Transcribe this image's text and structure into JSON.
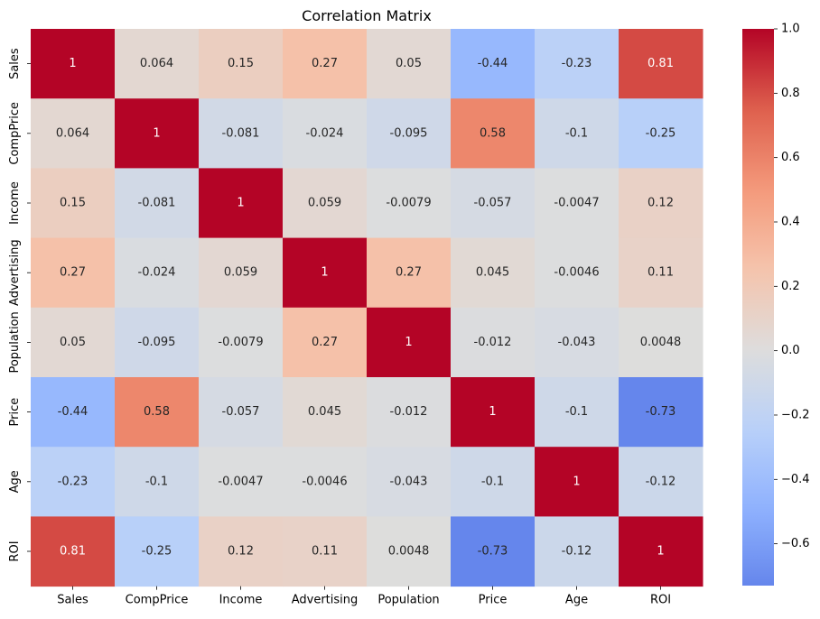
{
  "chart_data": {
    "type": "heatmap",
    "title": "Correlation Matrix",
    "xlabel": "",
    "ylabel": "",
    "labels": [
      "Sales",
      "CompPrice",
      "Income",
      "Advertising",
      "Population",
      "Price",
      "Age",
      "ROI"
    ],
    "matrix": [
      [
        1,
        0.064,
        0.15,
        0.27,
        0.05,
        -0.44,
        -0.23,
        0.81
      ],
      [
        0.064,
        1,
        -0.081,
        -0.024,
        -0.095,
        0.58,
        -0.1,
        -0.25
      ],
      [
        0.15,
        -0.081,
        1,
        0.059,
        -0.0079,
        -0.057,
        -0.0047,
        0.12
      ],
      [
        0.27,
        -0.024,
        0.059,
        1,
        0.27,
        0.045,
        -0.0046,
        0.11
      ],
      [
        0.05,
        -0.095,
        -0.0079,
        0.27,
        1,
        -0.012,
        -0.043,
        0.0048
      ],
      [
        -0.44,
        0.58,
        -0.057,
        0.045,
        -0.012,
        1,
        -0.1,
        -0.73
      ],
      [
        -0.23,
        -0.1,
        -0.0047,
        -0.0046,
        -0.043,
        -0.1,
        1,
        -0.12
      ],
      [
        0.81,
        -0.25,
        0.12,
        0.11,
        0.0048,
        -0.73,
        -0.12,
        1
      ]
    ],
    "annotations": [
      [
        "1",
        "0.064",
        "0.15",
        "0.27",
        "0.05",
        "-0.44",
        "-0.23",
        "0.81"
      ],
      [
        "0.064",
        "1",
        "-0.081",
        "-0.024",
        "-0.095",
        "0.58",
        "-0.1",
        "-0.25"
      ],
      [
        "0.15",
        "-0.081",
        "1",
        "0.059",
        "-0.0079",
        "-0.057",
        "-0.0047",
        "0.12"
      ],
      [
        "0.27",
        "-0.024",
        "0.059",
        "1",
        "0.27",
        "0.045",
        "-0.0046",
        "0.11"
      ],
      [
        "0.05",
        "-0.095",
        "-0.0079",
        "0.27",
        "1",
        "-0.012",
        "-0.043",
        "0.0048"
      ],
      [
        "-0.44",
        "0.58",
        "-0.057",
        "0.045",
        "-0.012",
        "1",
        "-0.1",
        "-0.73"
      ],
      [
        "-0.23",
        "-0.1",
        "-0.0047",
        "-0.0046",
        "-0.043",
        "-0.1",
        "1",
        "-0.12"
      ],
      [
        "0.81",
        "-0.25",
        "0.12",
        "0.11",
        "0.0048",
        "-0.73",
        "-0.12",
        "1"
      ]
    ],
    "colorbar": {
      "colormap": "coolwarm",
      "range": [
        -0.73,
        1
      ],
      "center": 0,
      "ticks": [
        -0.6,
        -0.4,
        -0.2,
        0.0,
        0.2,
        0.4,
        0.6,
        0.8,
        1.0
      ],
      "tick_labels": [
        "−0.6",
        "−0.4",
        "−0.2",
        "0.0",
        "0.2",
        "0.4",
        "0.6",
        "0.8",
        "1.0"
      ],
      "placement": "right"
    },
    "grid": false
  }
}
